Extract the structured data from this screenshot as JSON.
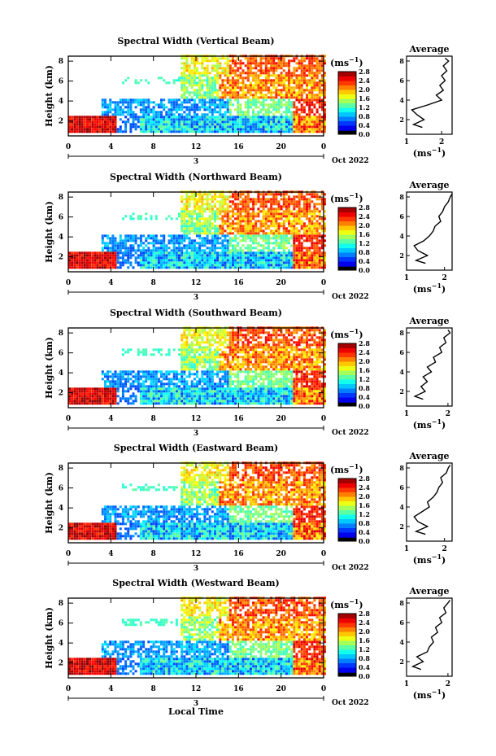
{
  "figure": {
    "xlabel": "Local Time",
    "date_label": "Oct 2022",
    "x_ticks": [
      "0",
      "4",
      "8",
      "12",
      "16",
      "20",
      "0"
    ],
    "day_label": "3",
    "y_ticks": [
      "2",
      "4",
      "6",
      "8"
    ],
    "ylabel": "Height (km)",
    "colorbar_ticks": [
      "0.0",
      "0.4",
      "0.8",
      "1.2",
      "1.6",
      "2.0",
      "2.4",
      "2.8"
    ],
    "colorbar_unit": "(ms",
    "colorbar_unit_sup": "−1",
    "colorbar_unit_end": ")",
    "avg_title": "Average",
    "avg_unit": "(ms",
    "avg_unit_sup": "−1",
    "avg_unit_end": ")",
    "avg_y_ticks": [
      "2",
      "4",
      "6",
      "8"
    ]
  },
  "chart_data": [
    {
      "type": "heatmap",
      "title": "Spectral Width (Vertical Beam)",
      "xlabel": "Local Time",
      "ylabel": "Height (km)",
      "x_range": [
        0,
        24
      ],
      "y_range": [
        0.5,
        8.5
      ],
      "color_range": [
        0.0,
        2.8
      ],
      "colorbar_unit": "ms^-1",
      "avg_profile": {
        "title": "Average",
        "xlim": [
          1,
          2.3
        ],
        "x_ticks": [
          "1",
          "2"
        ],
        "heights": [
          1.2,
          1.5,
          2.0,
          2.5,
          3.0,
          3.5,
          4.0,
          4.5,
          5.0,
          5.5,
          6.0,
          6.5,
          7.0,
          7.5,
          8.0,
          8.3
        ],
        "values": [
          1.45,
          1.2,
          1.5,
          1.3,
          1.15,
          1.6,
          2.0,
          1.85,
          2.05,
          1.95,
          2.1,
          2.0,
          2.15,
          2.05,
          2.2,
          2.1
        ]
      }
    },
    {
      "type": "heatmap",
      "title": "Spectral Width (Northward Beam)",
      "xlabel": "Local Time",
      "ylabel": "Height (km)",
      "x_range": [
        0,
        24
      ],
      "y_range": [
        0.5,
        8.5
      ],
      "color_range": [
        0.0,
        2.8
      ],
      "colorbar_unit": "ms^-1",
      "avg_profile": {
        "title": "Average",
        "xlim": [
          1,
          2.2
        ],
        "x_ticks": [
          "1",
          "2"
        ],
        "heights": [
          1.2,
          1.5,
          2.0,
          2.5,
          3.0,
          3.5,
          4.0,
          4.5,
          5.0,
          5.5,
          6.0,
          6.5,
          7.0,
          7.5,
          8.0,
          8.3
        ],
        "values": [
          1.5,
          1.25,
          1.55,
          1.3,
          1.2,
          1.45,
          1.6,
          1.7,
          1.75,
          1.9,
          1.85,
          1.95,
          2.0,
          2.1,
          2.15,
          2.2
        ]
      }
    },
    {
      "type": "heatmap",
      "title": "Spectral Width (Southward Beam)",
      "xlabel": "Local Time",
      "ylabel": "Height (km)",
      "x_range": [
        0,
        24
      ],
      "y_range": [
        0.5,
        8.5
      ],
      "color_range": [
        0.0,
        2.8
      ],
      "colorbar_unit": "ms^-1",
      "avg_profile": {
        "title": "Average",
        "xlim": [
          1,
          2.1
        ],
        "x_ticks": [
          "1",
          "2"
        ],
        "heights": [
          1.2,
          1.5,
          2.0,
          2.5,
          3.0,
          3.5,
          4.0,
          4.5,
          5.0,
          5.5,
          6.0,
          6.5,
          7.0,
          7.5,
          8.0,
          8.3
        ],
        "values": [
          1.4,
          1.2,
          1.45,
          1.35,
          1.5,
          1.4,
          1.6,
          1.5,
          1.7,
          1.65,
          1.85,
          1.8,
          1.95,
          1.9,
          2.05,
          2.0
        ]
      }
    },
    {
      "type": "heatmap",
      "title": "Spectral Width (Eastward Beam)",
      "xlabel": "Local Time",
      "ylabel": "Height (km)",
      "x_range": [
        0,
        24
      ],
      "y_range": [
        0.5,
        8.5
      ],
      "color_range": [
        0.0,
        2.8
      ],
      "colorbar_unit": "ms^-1",
      "avg_profile": {
        "title": "Average",
        "xlim": [
          1,
          2.2
        ],
        "x_ticks": [
          "1",
          "2"
        ],
        "heights": [
          1.2,
          1.5,
          2.0,
          2.5,
          3.0,
          3.5,
          4.0,
          4.5,
          5.0,
          5.5,
          6.0,
          6.5,
          7.0,
          7.5,
          8.0,
          8.3
        ],
        "values": [
          1.5,
          1.25,
          1.55,
          1.3,
          1.2,
          1.4,
          1.6,
          1.55,
          1.7,
          1.8,
          1.85,
          1.95,
          1.9,
          2.05,
          2.1,
          2.15
        ]
      }
    },
    {
      "type": "heatmap",
      "title": "Spectral Width (Westward Beam)",
      "xlabel": "Local Time",
      "ylabel": "Height (km)",
      "x_range": [
        0,
        24
      ],
      "y_range": [
        0.5,
        8.5
      ],
      "color_range": [
        0.0,
        2.8
      ],
      "colorbar_unit": "ms^-1",
      "avg_profile": {
        "title": "Average",
        "xlim": [
          1,
          2.1
        ],
        "x_ticks": [
          "1",
          "2"
        ],
        "heights": [
          1.2,
          1.5,
          2.0,
          2.5,
          3.0,
          3.5,
          4.0,
          4.5,
          5.0,
          5.5,
          6.0,
          6.5,
          7.0,
          7.5,
          8.0,
          8.3
        ],
        "values": [
          1.35,
          1.15,
          1.4,
          1.25,
          1.5,
          1.55,
          1.65,
          1.6,
          1.75,
          1.7,
          1.85,
          1.8,
          1.95,
          1.9,
          2.0,
          2.05
        ]
      }
    }
  ]
}
